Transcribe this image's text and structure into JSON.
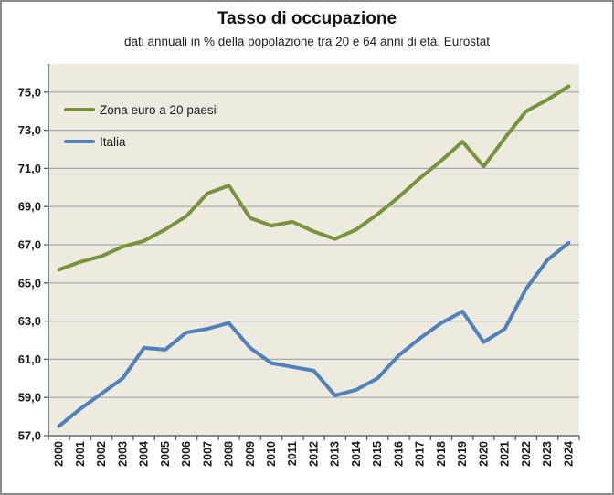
{
  "title": "Tasso di occupazione",
  "subtitle": "dati annuali in % della popolazione tra 20 e 64 anni di età, Eurostat",
  "legend": [
    {
      "label": "Zona euro a 20 paesi",
      "color": "#77933C"
    },
    {
      "label": "Italia",
      "color": "#4F81BD"
    }
  ],
  "colors": {
    "plot_background": "#EDEAE0",
    "outer_background": "#FFFFFF",
    "outer_border": "#8A8A8A",
    "gridline": "#A6A6A6",
    "axis": "#666666",
    "text": "#1A1A1A",
    "series_euro": "#77933C",
    "series_italia": "#4F81BD"
  },
  "chart_data": {
    "type": "line",
    "x": [
      2000,
      2001,
      2002,
      2003,
      2004,
      2005,
      2006,
      2007,
      2008,
      2009,
      2010,
      2011,
      2012,
      2013,
      2014,
      2015,
      2016,
      2017,
      2018,
      2019,
      2020,
      2021,
      2022,
      2023,
      2024
    ],
    "series": [
      {
        "name": "Zona euro a 20 paesi",
        "color": "#77933C",
        "values": [
          65.7,
          66.1,
          66.4,
          66.9,
          67.2,
          67.8,
          68.5,
          69.7,
          70.1,
          68.4,
          68.0,
          68.2,
          67.7,
          67.3,
          67.8,
          68.6,
          69.5,
          70.5,
          71.4,
          72.4,
          71.1,
          72.6,
          74.0,
          74.6,
          75.3
        ]
      },
      {
        "name": "Italia",
        "color": "#4F81BD",
        "values": [
          57.5,
          58.4,
          59.2,
          60.0,
          61.6,
          61.5,
          62.4,
          62.6,
          62.9,
          61.6,
          60.8,
          60.6,
          60.4,
          59.1,
          59.4,
          60.0,
          61.2,
          62.1,
          62.9,
          63.5,
          61.9,
          62.6,
          64.7,
          66.2,
          67.1
        ]
      }
    ],
    "title": "Tasso di occupazione",
    "subtitle": "dati annuali in % della popolazione tra 20 e 64 anni di età, Eurostat",
    "xlabel": "",
    "ylabel": "",
    "ylim": [
      57,
      76.5
    ],
    "ytick_step": 2,
    "ytick_labels": [
      "57,0",
      "59,0",
      "61,0",
      "63,0",
      "65,0",
      "67,0",
      "69,0",
      "71,0",
      "73,0",
      "75,0"
    ],
    "grid": true,
    "legend_position": "top-left",
    "decimal_separator": ","
  }
}
